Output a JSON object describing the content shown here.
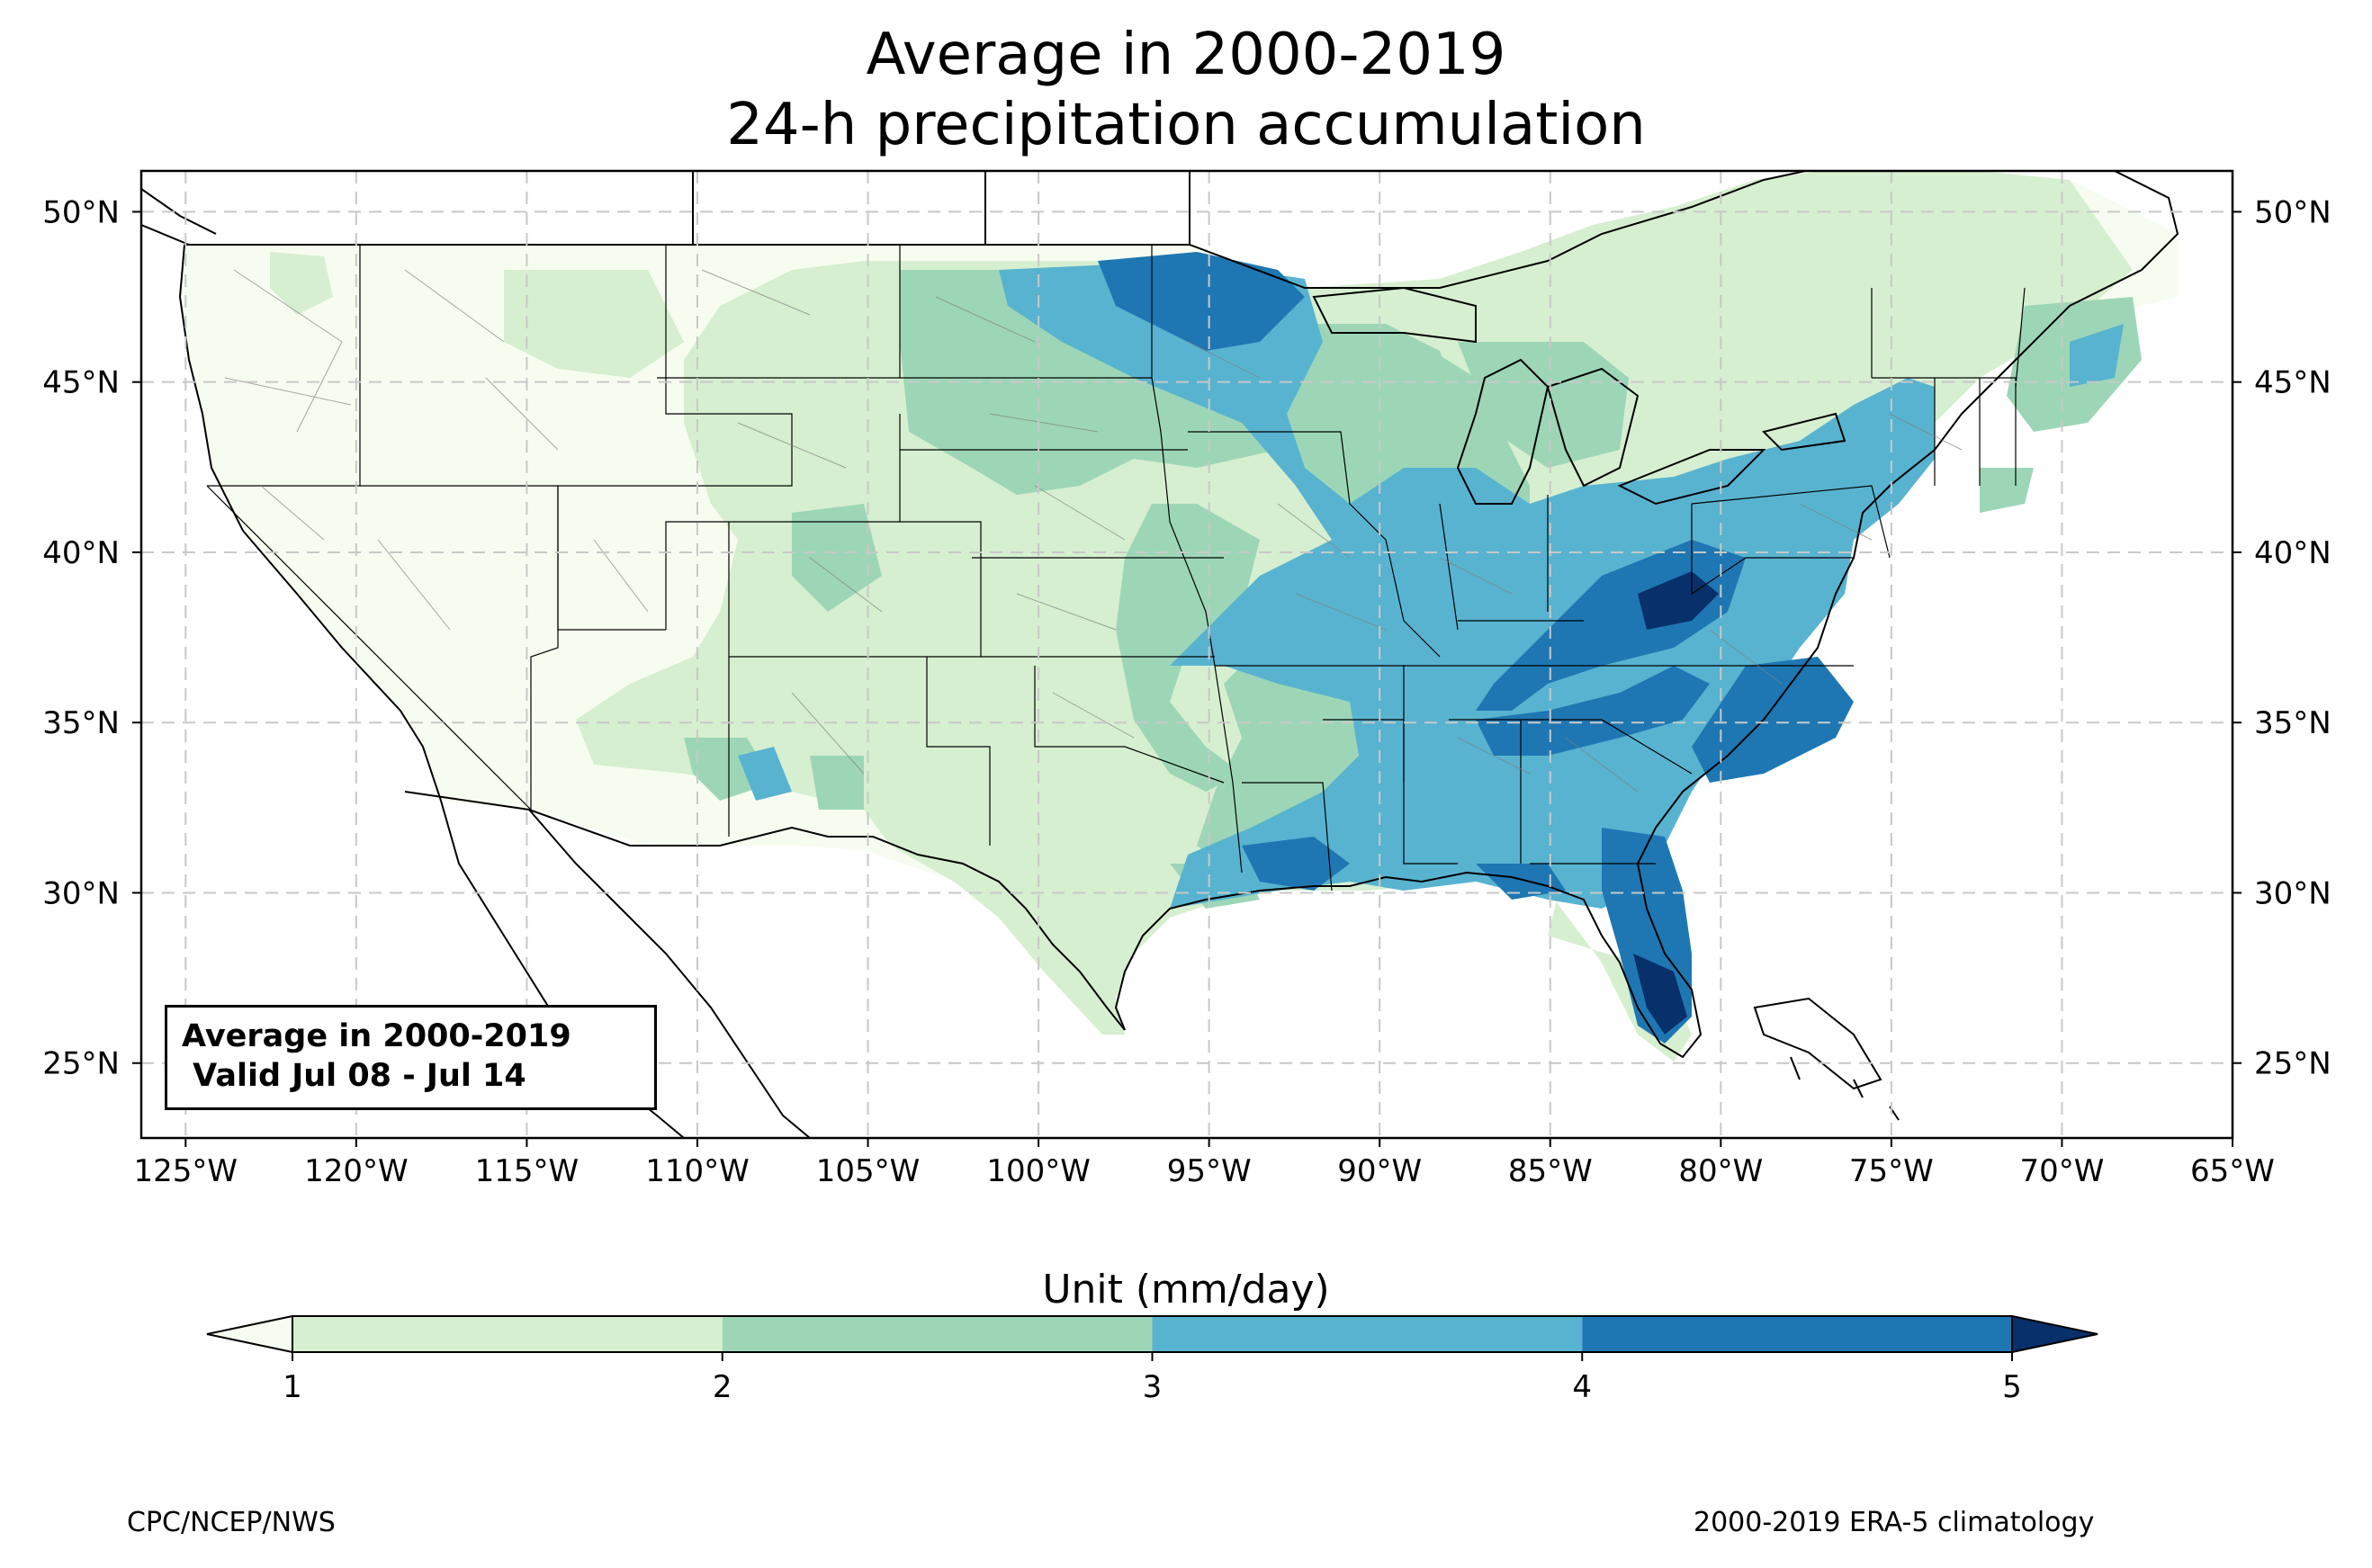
{
  "title": {
    "line1": "Average in 2000-2019",
    "line2": "24-h precipitation accumulation"
  },
  "infobox": {
    "line1": "Average in 2000-2019",
    "line2": " Valid Jul 08 - Jul 14"
  },
  "axes": {
    "lon_labels": [
      "125°W",
      "120°W",
      "115°W",
      "110°W",
      "105°W",
      "100°W",
      "95°W",
      "90°W",
      "85°W",
      "80°W",
      "75°W",
      "70°W",
      "65°W"
    ],
    "lat_labels": [
      "25°N",
      "30°N",
      "35°N",
      "40°N",
      "45°N",
      "50°N"
    ],
    "lon_range": [
      -126.3,
      -65
    ],
    "lat_range": [
      22.8,
      51.2
    ],
    "gridlines": true
  },
  "colorbar": {
    "title": "Unit (mm/day)",
    "tick_labels": [
      "1",
      "2",
      "3",
      "4",
      "5"
    ],
    "bins": [
      {
        "from": 1,
        "to": 2,
        "color": "#d6efd0"
      },
      {
        "from": 2,
        "to": 3,
        "color": "#9dd6b7"
      },
      {
        "from": 3,
        "to": 4,
        "color": "#58b3d0"
      },
      {
        "from": 4,
        "to": 5,
        "color": "#1e77b3"
      }
    ],
    "under_color": "#f7fcf0",
    "over_color": "#08306b"
  },
  "footer": {
    "left": "CPC/NCEP/NWS",
    "right": "2000-2019 ERA-5 climatology"
  }
}
